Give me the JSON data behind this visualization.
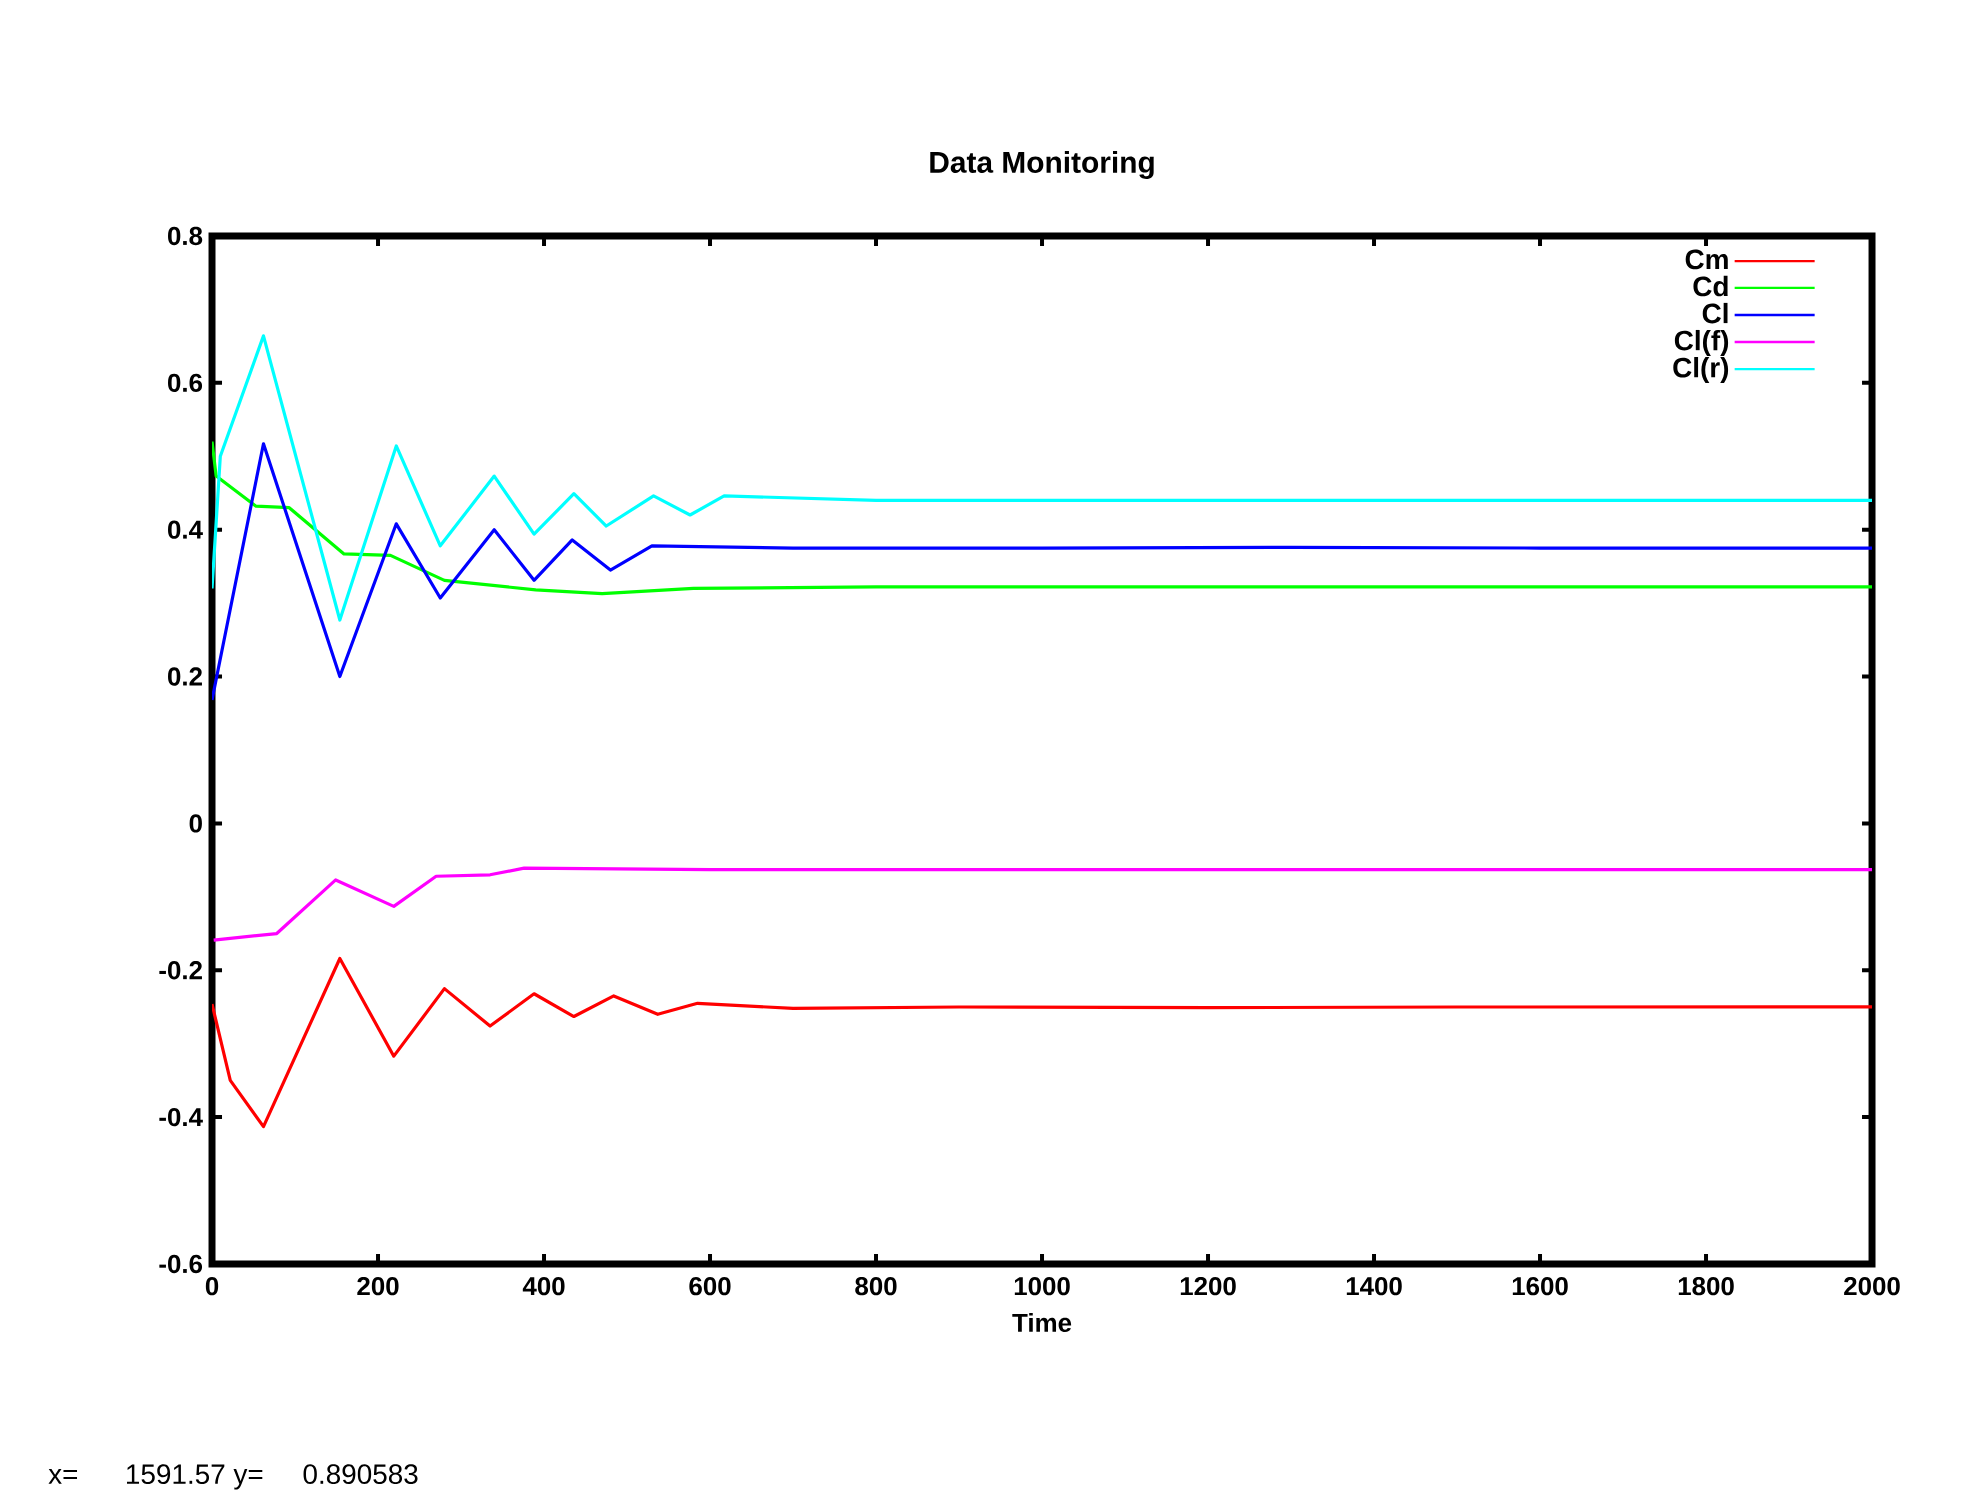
{
  "chart_data": {
    "type": "line",
    "title": "Data Monitoring",
    "xlabel": "Time",
    "xlim": [
      0,
      2000
    ],
    "ylim": [
      -0.6,
      0.8
    ],
    "xticks": [
      0,
      200,
      400,
      600,
      800,
      1000,
      1200,
      1400,
      1600,
      1800,
      2000
    ],
    "yticks": [
      -0.6,
      -0.4,
      -0.2,
      0,
      0.2,
      0.4,
      0.6,
      0.8
    ],
    "grid": false,
    "legend": "top right",
    "annotations": [
      "x=      1591.57 y=     0.890583"
    ],
    "series": [
      {
        "name": "Cm",
        "color": "#ff0000",
        "x": [
          0,
          22,
          62,
          154,
          219,
          280,
          335,
          388,
          436,
          484,
          537,
          585,
          700,
          900,
          1200,
          1500,
          1800,
          2000
        ],
        "values": [
          -0.246,
          -0.35,
          -0.413,
          -0.184,
          -0.317,
          -0.225,
          -0.276,
          -0.232,
          -0.263,
          -0.235,
          -0.26,
          -0.245,
          -0.252,
          -0.25,
          -0.251,
          -0.25,
          -0.25,
          -0.25
        ]
      },
      {
        "name": "Cd",
        "color": "#00ff00",
        "x": [
          0,
          5,
          53,
          93,
          159,
          215,
          280,
          390,
          470,
          580,
          800,
          1200,
          1600,
          2000
        ],
        "values": [
          0.52,
          0.473,
          0.432,
          0.43,
          0.367,
          0.365,
          0.331,
          0.318,
          0.313,
          0.32,
          0.322,
          0.322,
          0.322,
          0.322
        ]
      },
      {
        "name": "Cl",
        "color": "#0000ff",
        "x": [
          0,
          62,
          154,
          222,
          275,
          340,
          388,
          434,
          480,
          530,
          700,
          1000,
          1300,
          1600,
          2000
        ],
        "values": [
          0.168,
          0.517,
          0.2,
          0.408,
          0.307,
          0.4,
          0.331,
          0.386,
          0.345,
          0.378,
          0.375,
          0.375,
          0.376,
          0.375,
          0.375
        ]
      },
      {
        "name": "Cl(f)",
        "color": "#ff00ff",
        "x": [
          2,
          78,
          149,
          219,
          270,
          335,
          376,
          600,
          1000,
          1400,
          2000
        ],
        "values": [
          -0.159,
          -0.15,
          -0.077,
          -0.113,
          -0.072,
          -0.07,
          -0.061,
          -0.063,
          -0.063,
          -0.063,
          -0.063
        ]
      },
      {
        "name": "Cl(r)",
        "color": "#00ffff",
        "x": [
          0,
          10,
          62,
          154,
          222,
          275,
          340,
          388,
          436,
          475,
          532,
          576,
          617,
          800,
          1200,
          1600,
          2000
        ],
        "values": [
          0.32,
          0.5,
          0.664,
          0.277,
          0.514,
          0.378,
          0.473,
          0.394,
          0.449,
          0.405,
          0.446,
          0.42,
          0.446,
          0.44,
          0.44,
          0.44,
          0.44
        ]
      }
    ]
  }
}
